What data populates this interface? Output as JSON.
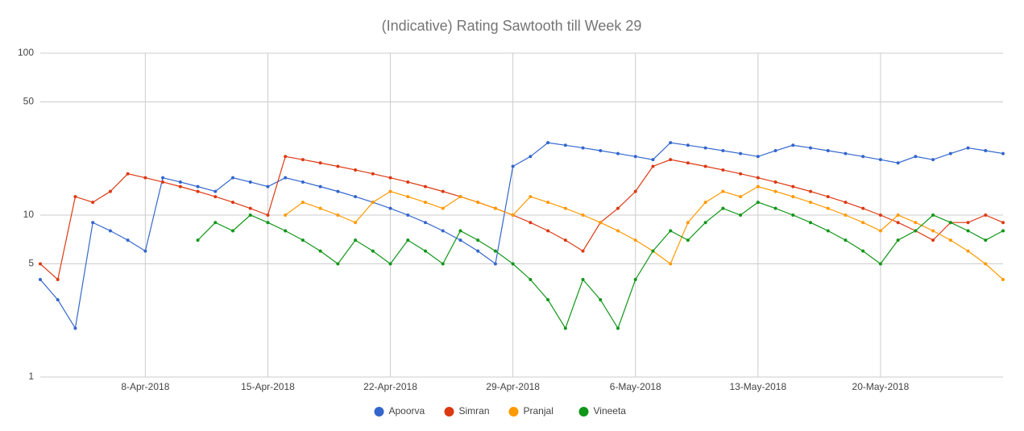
{
  "chart_data": {
    "type": "line",
    "title": "(Indicative) Rating Sawtooth till Week 29",
    "x": [
      "2018-04-02",
      "2018-04-03",
      "2018-04-04",
      "2018-04-05",
      "2018-04-06",
      "2018-04-07",
      "2018-04-08",
      "2018-04-09",
      "2018-04-10",
      "2018-04-11",
      "2018-04-12",
      "2018-04-13",
      "2018-04-14",
      "2018-04-15",
      "2018-04-16",
      "2018-04-17",
      "2018-04-18",
      "2018-04-19",
      "2018-04-20",
      "2018-04-21",
      "2018-04-22",
      "2018-04-23",
      "2018-04-24",
      "2018-04-25",
      "2018-04-26",
      "2018-04-27",
      "2018-04-28",
      "2018-04-29",
      "2018-04-30",
      "2018-05-01",
      "2018-05-02",
      "2018-05-03",
      "2018-05-04",
      "2018-05-05",
      "2018-05-06",
      "2018-05-07",
      "2018-05-08",
      "2018-05-09",
      "2018-05-10",
      "2018-05-11",
      "2018-05-12",
      "2018-05-13",
      "2018-05-14",
      "2018-05-15",
      "2018-05-16",
      "2018-05-17",
      "2018-05-18",
      "2018-05-19",
      "2018-05-20",
      "2018-05-21",
      "2018-05-22",
      "2018-05-23",
      "2018-05-24",
      "2018-05-25",
      "2018-05-26",
      "2018-05-27"
    ],
    "series": [
      {
        "name": "Apoorva",
        "color": "#3366cc",
        "values": [
          4,
          3,
          2,
          9,
          8,
          7,
          6,
          17,
          16,
          15,
          14,
          17,
          16,
          15,
          17,
          16,
          15,
          14,
          13,
          12,
          11,
          10,
          9,
          8,
          7,
          6,
          5,
          20,
          23,
          28,
          27,
          26,
          25,
          24,
          23,
          22,
          28,
          27,
          26,
          25,
          24,
          23,
          25,
          27,
          26,
          25,
          24,
          23,
          22,
          21,
          23,
          22,
          24,
          26,
          25,
          24
        ]
      },
      {
        "name": "Simran",
        "color": "#dc3912",
        "values": [
          5,
          4,
          13,
          12,
          14,
          18,
          17,
          16,
          15,
          14,
          13,
          12,
          11,
          10,
          23,
          22,
          21,
          20,
          19,
          18,
          17,
          16,
          15,
          14,
          13,
          12,
          11,
          10,
          9,
          8,
          7,
          6,
          9,
          11,
          14,
          20,
          22,
          21,
          20,
          19,
          18,
          17,
          16,
          15,
          14,
          13,
          12,
          11,
          10,
          9,
          8,
          7,
          9,
          9,
          10,
          9
        ]
      },
      {
        "name": "Pranjal",
        "color": "#ff9900",
        "values": [
          null,
          null,
          null,
          null,
          null,
          null,
          null,
          null,
          null,
          null,
          null,
          null,
          null,
          null,
          10,
          12,
          11,
          10,
          9,
          12,
          14,
          13,
          12,
          11,
          13,
          12,
          11,
          10,
          13,
          12,
          11,
          10,
          9,
          8,
          7,
          6,
          5,
          9,
          12,
          14,
          13,
          15,
          14,
          13,
          12,
          11,
          10,
          9,
          8,
          10,
          9,
          8,
          7,
          6,
          5,
          4
        ]
      },
      {
        "name": "Vineeta",
        "color": "#109618",
        "values": [
          null,
          null,
          null,
          null,
          null,
          null,
          null,
          null,
          null,
          7,
          9,
          8,
          10,
          9,
          8,
          7,
          6,
          5,
          7,
          6,
          5,
          7,
          6,
          5,
          8,
          7,
          6,
          5,
          4,
          3,
          2,
          4,
          3,
          2,
          4,
          6,
          8,
          7,
          9,
          11,
          10,
          12,
          11,
          10,
          9,
          8,
          7,
          6,
          5,
          7,
          8,
          10,
          9,
          8,
          7,
          8
        ]
      }
    ],
    "xlim": [
      "2018-04-02",
      "2018-05-27"
    ],
    "xticks": [
      {
        "value": "2018-04-08",
        "label": "8-Apr-2018"
      },
      {
        "value": "2018-04-15",
        "label": "15-Apr-2018"
      },
      {
        "value": "2018-04-22",
        "label": "22-Apr-2018"
      },
      {
        "value": "2018-04-29",
        "label": "29-Apr-2018"
      },
      {
        "value": "2018-05-06",
        "label": "6-May-2018"
      },
      {
        "value": "2018-05-13",
        "label": "13-May-2018"
      },
      {
        "value": "2018-05-20",
        "label": "20-May-2018"
      }
    ],
    "ylim": [
      1,
      100
    ],
    "yticks": [
      1,
      5,
      10,
      50,
      100
    ],
    "log_y": true,
    "grid": true,
    "legend": "bottom"
  }
}
